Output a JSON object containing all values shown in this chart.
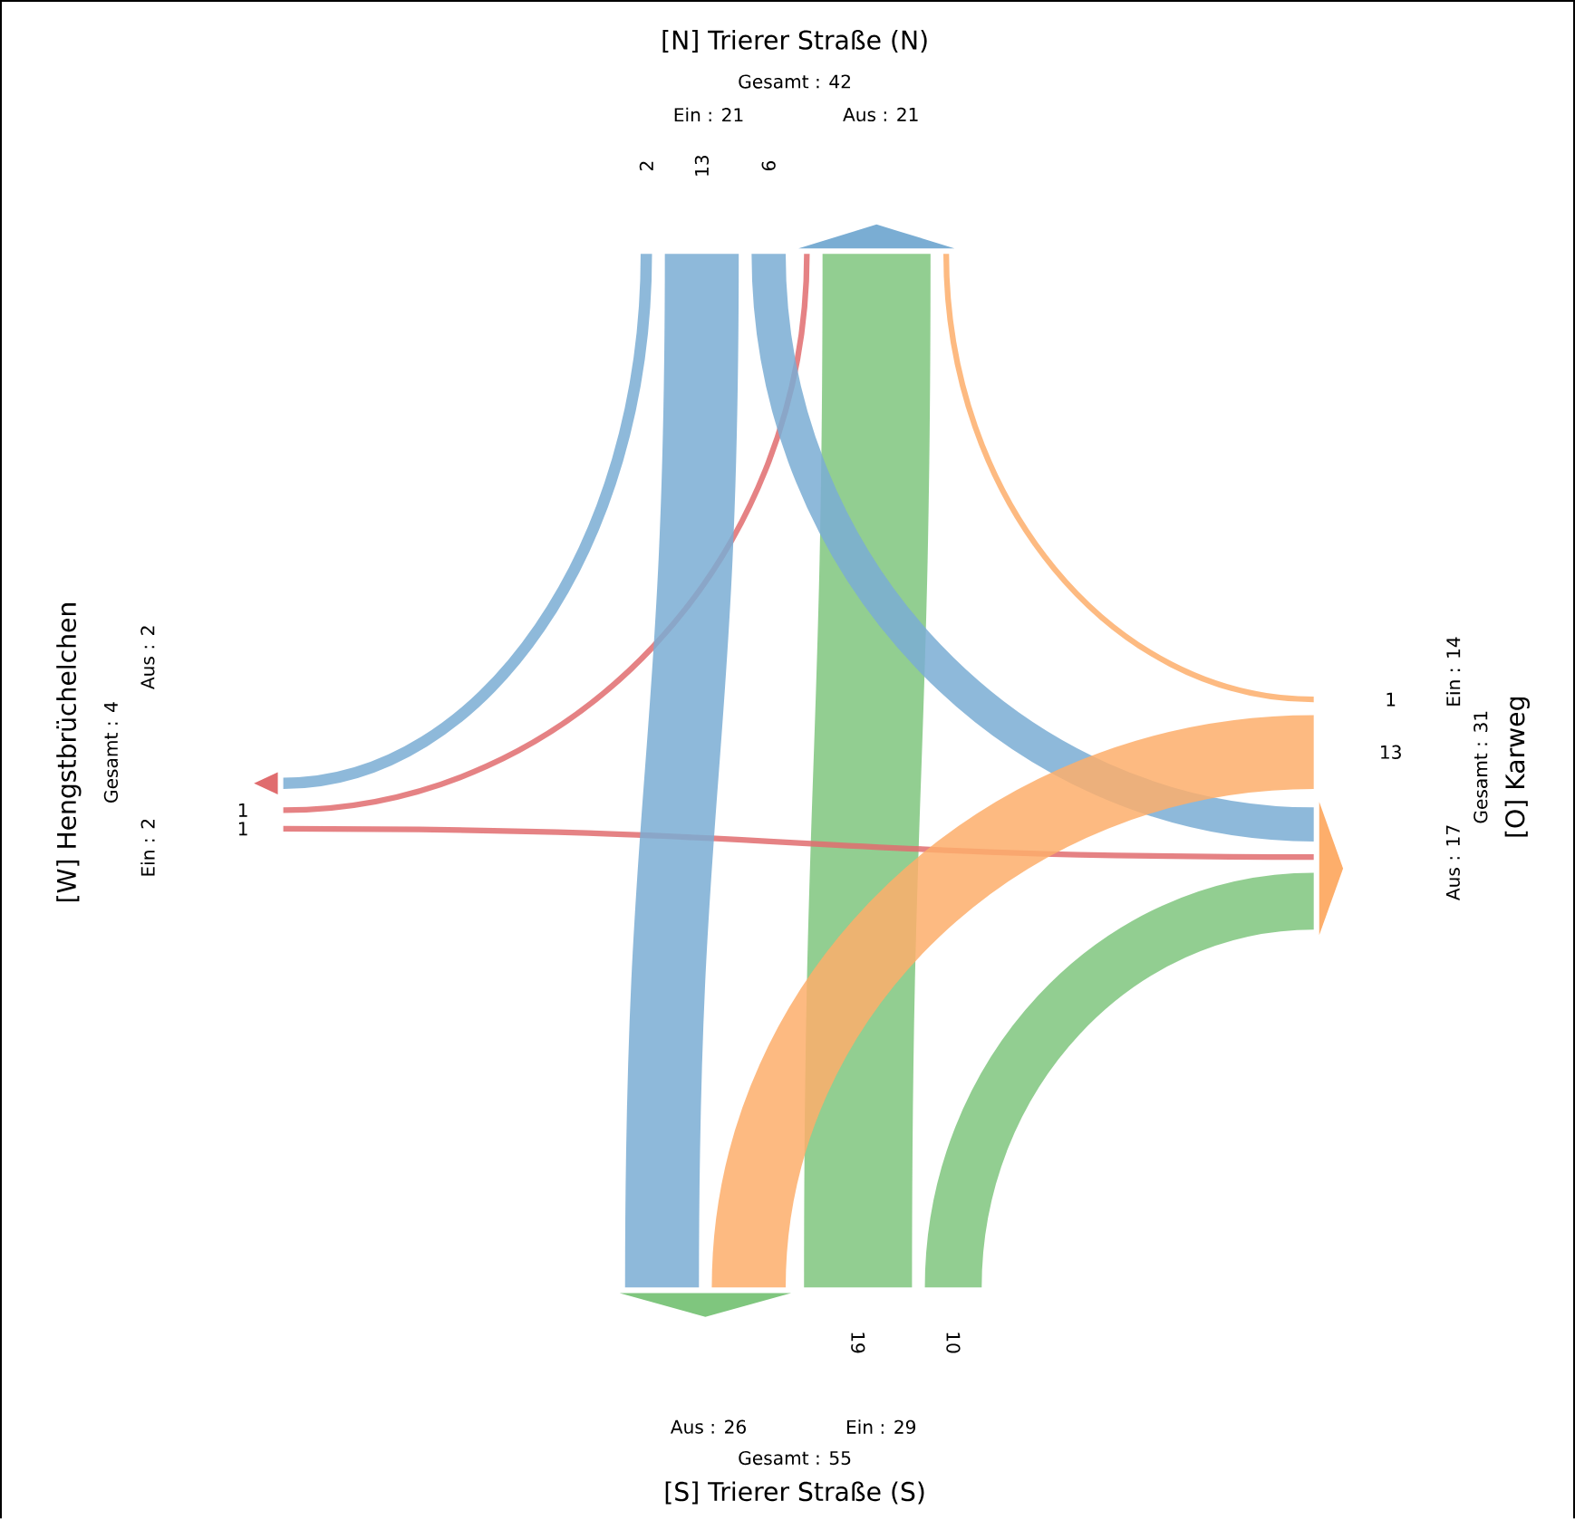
{
  "chart_data": {
    "type": "other",
    "categories": [
      "[N] Trierer Straße (N)",
      "[O] Karweg",
      "[S] Trierer Straße (S)",
      "[W] Hengstbrüchelchen"
    ],
    "series": [
      {
        "values": [
          null,
          1,
          19,
          1
        ],
        "colors": [
          null,
          "#fdae6b",
          "#7fc67e",
          "#e06c6e"
        ]
      },
      {
        "values": [
          6,
          null,
          10,
          1
        ],
        "colors": [
          "#7aadd3",
          null,
          "#7fc67e",
          "#e06c6e"
        ]
      },
      {
        "values": [
          13,
          13,
          null,
          null
        ],
        "colors": [
          "#7aadd3",
          "#fdae6b",
          null,
          null
        ]
      },
      {
        "values": [
          2,
          null,
          null,
          null
        ],
        "colors": [
          "#7aadd3",
          null,
          null,
          null
        ]
      }
    ],
    "data_labels": true,
    "annotations": [
      "Gesamt : 42",
      "Ein : 21",
      "Aus : 21",
      "Gesamt : 31",
      "Ein : 14",
      "Aus : 17",
      "Gesamt : 55",
      "Ein : 29",
      "Aus : 26",
      "Gesamt : 4",
      "Ein : 2",
      "Aus : 2"
    ]
  }
}
